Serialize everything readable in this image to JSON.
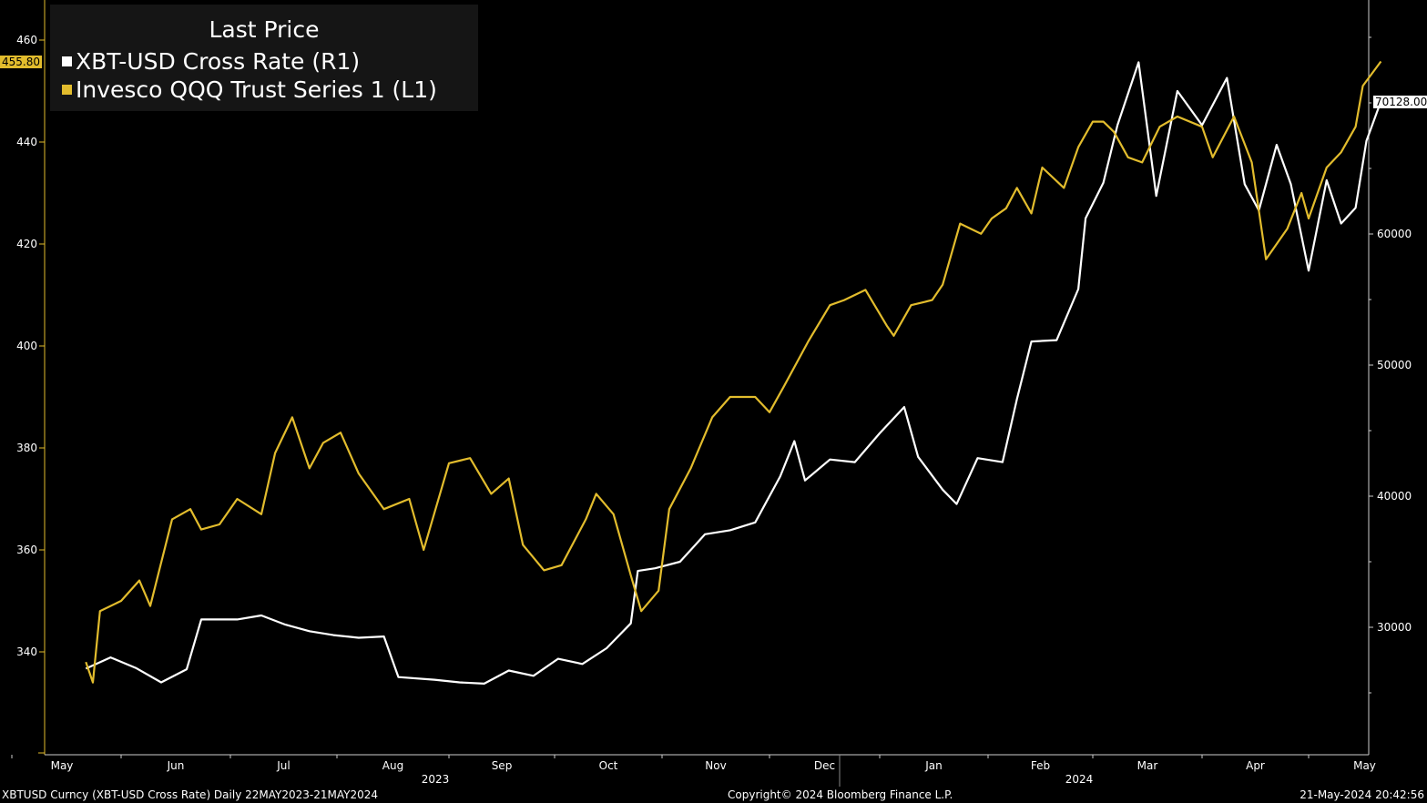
{
  "chart_data": {
    "type": "line",
    "title": "Last Price",
    "legend_position": "top-left",
    "grid": false,
    "x_range": [
      "2023-05-22",
      "2024-05-21"
    ],
    "months": [
      {
        "label": "May",
        "date": "2023-05-01"
      },
      {
        "label": "Jun",
        "date": "2023-06-01"
      },
      {
        "label": "Jul",
        "date": "2023-07-01"
      },
      {
        "label": "Aug",
        "date": "2023-08-01"
      },
      {
        "label": "Sep",
        "date": "2023-09-01"
      },
      {
        "label": "Oct",
        "date": "2023-10-01"
      },
      {
        "label": "Nov",
        "date": "2023-11-01"
      },
      {
        "label": "Dec",
        "date": "2023-12-01"
      },
      {
        "label": "Jan",
        "date": "2024-01-01"
      },
      {
        "label": "Feb",
        "date": "2024-02-01"
      },
      {
        "label": "Mar",
        "date": "2024-03-01"
      },
      {
        "label": "Apr",
        "date": "2024-04-01"
      },
      {
        "label": "May",
        "date": "2024-05-01"
      }
    ],
    "years": [
      {
        "label": "2023",
        "date": "2023-09-01"
      },
      {
        "label": "2024",
        "date": "2024-03-01"
      }
    ],
    "year_divider_date": "2024-01-01",
    "left_axis": {
      "min": 320,
      "max": 465,
      "ticks": [
        340,
        360,
        380,
        400,
        420,
        440,
        460
      ]
    },
    "right_axis": {
      "min": 22000,
      "max": 75000,
      "ticks": [
        30000,
        40000,
        50000,
        60000
      ]
    },
    "series": [
      {
        "name": "XBT-USD Cross Rate  (R1)",
        "axis": "right",
        "color": "#ffffff",
        "last_value_label": "70128.00",
        "points": [
          [
            "2023-05-22",
            26850
          ],
          [
            "2023-05-29",
            27700
          ],
          [
            "2023-06-05",
            26900
          ],
          [
            "2023-06-12",
            25800
          ],
          [
            "2023-06-19",
            26800
          ],
          [
            "2023-06-23",
            30600
          ],
          [
            "2023-07-03",
            30600
          ],
          [
            "2023-07-10",
            30900
          ],
          [
            "2023-07-17",
            30200
          ],
          [
            "2023-07-24",
            29700
          ],
          [
            "2023-07-31",
            29400
          ],
          [
            "2023-08-07",
            29200
          ],
          [
            "2023-08-14",
            29300
          ],
          [
            "2023-08-18",
            26200
          ],
          [
            "2023-08-28",
            26000
          ],
          [
            "2023-09-04",
            25800
          ],
          [
            "2023-09-11",
            25700
          ],
          [
            "2023-09-18",
            26700
          ],
          [
            "2023-09-25",
            26300
          ],
          [
            "2023-10-02",
            27600
          ],
          [
            "2023-10-09",
            27200
          ],
          [
            "2023-10-16",
            28400
          ],
          [
            "2023-10-23",
            30300
          ],
          [
            "2023-10-25",
            34300
          ],
          [
            "2023-10-30",
            34500
          ],
          [
            "2023-11-06",
            35000
          ],
          [
            "2023-11-13",
            37100
          ],
          [
            "2023-11-20",
            37400
          ],
          [
            "2023-11-27",
            38000
          ],
          [
            "2023-12-04",
            41500
          ],
          [
            "2023-12-08",
            44200
          ],
          [
            "2023-12-11",
            41200
          ],
          [
            "2023-12-18",
            42800
          ],
          [
            "2023-12-25",
            42600
          ],
          [
            "2024-01-01",
            44800
          ],
          [
            "2024-01-08",
            46800
          ],
          [
            "2024-01-12",
            43000
          ],
          [
            "2024-01-19",
            40500
          ],
          [
            "2024-01-23",
            39400
          ],
          [
            "2024-01-29",
            42900
          ],
          [
            "2024-02-05",
            42600
          ],
          [
            "2024-02-09",
            47400
          ],
          [
            "2024-02-13",
            51800
          ],
          [
            "2024-02-20",
            51900
          ],
          [
            "2024-02-26",
            55800
          ],
          [
            "2024-02-28",
            61200
          ],
          [
            "2024-03-04",
            63900
          ],
          [
            "2024-03-08",
            68300
          ],
          [
            "2024-03-14",
            73100
          ],
          [
            "2024-03-19",
            62900
          ],
          [
            "2024-03-25",
            70900
          ],
          [
            "2024-04-01",
            68300
          ],
          [
            "2024-04-08",
            71900
          ],
          [
            "2024-04-13",
            63800
          ],
          [
            "2024-04-17",
            61800
          ],
          [
            "2024-04-22",
            66800
          ],
          [
            "2024-04-26",
            63800
          ],
          [
            "2024-05-01",
            57200
          ],
          [
            "2024-05-06",
            64100
          ],
          [
            "2024-05-10",
            60800
          ],
          [
            "2024-05-14",
            62000
          ],
          [
            "2024-05-17",
            67100
          ],
          [
            "2024-05-21",
            70128
          ]
        ]
      },
      {
        "name": "Invesco QQQ Trust Series 1  (L1)",
        "axis": "left",
        "color": "#e2bc2d",
        "last_value_label": "455.80",
        "points": [
          [
            "2023-05-22",
            338
          ],
          [
            "2023-05-24",
            334
          ],
          [
            "2023-05-26",
            348
          ],
          [
            "2023-06-01",
            350
          ],
          [
            "2023-06-06",
            354
          ],
          [
            "2023-06-09",
            349
          ],
          [
            "2023-06-15",
            366
          ],
          [
            "2023-06-20",
            368
          ],
          [
            "2023-06-23",
            364
          ],
          [
            "2023-06-28",
            365
          ],
          [
            "2023-07-03",
            370
          ],
          [
            "2023-07-10",
            367
          ],
          [
            "2023-07-14",
            379
          ],
          [
            "2023-07-19",
            386
          ],
          [
            "2023-07-24",
            376
          ],
          [
            "2023-07-28",
            381
          ],
          [
            "2023-08-02",
            383
          ],
          [
            "2023-08-07",
            375
          ],
          [
            "2023-08-14",
            368
          ],
          [
            "2023-08-21",
            370
          ],
          [
            "2023-08-25",
            360
          ],
          [
            "2023-09-01",
            377
          ],
          [
            "2023-09-07",
            378
          ],
          [
            "2023-09-13",
            371
          ],
          [
            "2023-09-18",
            374
          ],
          [
            "2023-09-22",
            361
          ],
          [
            "2023-09-28",
            356
          ],
          [
            "2023-10-03",
            357
          ],
          [
            "2023-10-10",
            366
          ],
          [
            "2023-10-13",
            371
          ],
          [
            "2023-10-18",
            367
          ],
          [
            "2023-10-23",
            355
          ],
          [
            "2023-10-26",
            348
          ],
          [
            "2023-10-31",
            352
          ],
          [
            "2023-11-03",
            368
          ],
          [
            "2023-11-09",
            376
          ],
          [
            "2023-11-15",
            386
          ],
          [
            "2023-11-20",
            390
          ],
          [
            "2023-11-27",
            390
          ],
          [
            "2023-12-01",
            387
          ],
          [
            "2023-12-05",
            392
          ],
          [
            "2023-12-12",
            401
          ],
          [
            "2023-12-18",
            408
          ],
          [
            "2023-12-22",
            409
          ],
          [
            "2023-12-28",
            411
          ],
          [
            "2024-01-03",
            404
          ],
          [
            "2024-01-05",
            402
          ],
          [
            "2024-01-10",
            408
          ],
          [
            "2024-01-16",
            409
          ],
          [
            "2024-01-19",
            412
          ],
          [
            "2024-01-24",
            424
          ],
          [
            "2024-01-30",
            422
          ],
          [
            "2024-02-02",
            425
          ],
          [
            "2024-02-06",
            427
          ],
          [
            "2024-02-09",
            431
          ],
          [
            "2024-02-13",
            426
          ],
          [
            "2024-02-16",
            435
          ],
          [
            "2024-02-22",
            431
          ],
          [
            "2024-02-26",
            439
          ],
          [
            "2024-03-01",
            444
          ],
          [
            "2024-03-04",
            444
          ],
          [
            "2024-03-07",
            442
          ],
          [
            "2024-03-11",
            437
          ],
          [
            "2024-03-15",
            436
          ],
          [
            "2024-03-20",
            443
          ],
          [
            "2024-03-25",
            445
          ],
          [
            "2024-04-01",
            443
          ],
          [
            "2024-04-04",
            437
          ],
          [
            "2024-04-10",
            445
          ],
          [
            "2024-04-15",
            436
          ],
          [
            "2024-04-19",
            417
          ],
          [
            "2024-04-23",
            421
          ],
          [
            "2024-04-25",
            423
          ],
          [
            "2024-04-29",
            430
          ],
          [
            "2024-05-01",
            425
          ],
          [
            "2024-05-06",
            435
          ],
          [
            "2024-05-10",
            438
          ],
          [
            "2024-05-14",
            443
          ],
          [
            "2024-05-16",
            451
          ],
          [
            "2024-05-21",
            455.8
          ]
        ]
      }
    ]
  },
  "footer": {
    "left": "XBTUSD Curncy (XBT-USD Cross Rate)  Daily 22MAY2023-21MAY2024",
    "center": "Copyright© 2024 Bloomberg Finance L.P.",
    "right": "21-May-2024 20:42:56"
  }
}
